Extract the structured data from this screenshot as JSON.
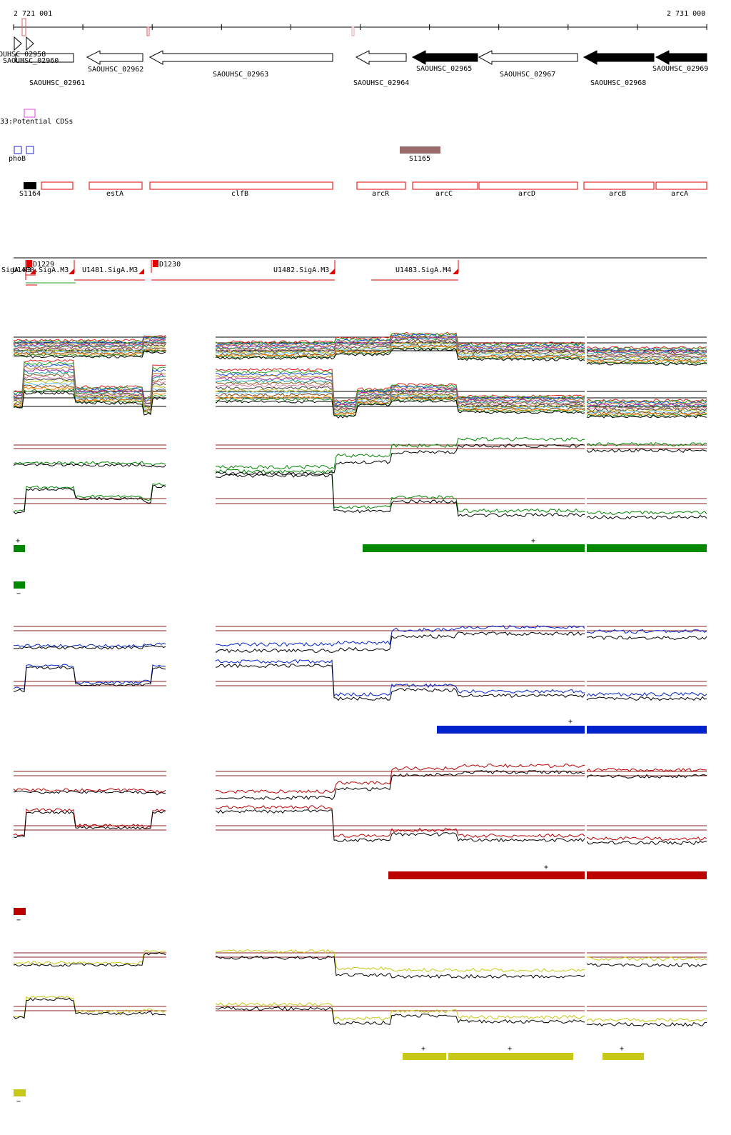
{
  "ruler": {
    "start_label": "2 721 001",
    "end_label": "2 731 000"
  },
  "genes": [
    {
      "id": "SAOUHSC_02958",
      "label": "OUHSC_02958",
      "fill": "#ffffff",
      "strand": "+"
    },
    {
      "id": "SAOUHSC_02960",
      "label": "SAOUHSC_02960",
      "fill": "#ffffff",
      "strand": "+"
    },
    {
      "id": "SAOUHSC_02961",
      "label": "SAOUHSC_02961",
      "fill": "#ffffff",
      "strand": "-"
    },
    {
      "id": "SAOUHSC_02962",
      "label": "SAOUHSC_02962",
      "fill": "#ffffff",
      "strand": "-"
    },
    {
      "id": "SAOUHSC_02963",
      "label": "SAOUHSC_02963",
      "fill": "#ffffff",
      "strand": "-"
    },
    {
      "id": "SAOUHSC_02964",
      "label": "SAOUHSC_02964",
      "fill": "#ffffff",
      "strand": "-"
    },
    {
      "id": "SAOUHSC_02965",
      "label": "SAOUHSC_02965",
      "fill": "#000000",
      "strand": "-"
    },
    {
      "id": "SAOUHSC_02967",
      "label": "SAOUHSC_02967",
      "fill": "#ffffff",
      "strand": "-"
    },
    {
      "id": "SAOUHSC_02968",
      "label": "SAOUHSC_02968",
      "fill": "#000000",
      "strand": "-"
    },
    {
      "id": "SAOUHSC_02969",
      "label": "SAOUHSC_02969",
      "fill": "#000000",
      "strand": "-"
    }
  ],
  "potential_cds": {
    "label": "33:Potential CDSs",
    "color": "#e040e0"
  },
  "regulators": {
    "site_label": "phoB",
    "site_color": "#2020d0",
    "rna_label": "S1165",
    "rna_color": "#9a6b6b"
  },
  "features": [
    {
      "label": "S1164",
      "color": "#000000"
    },
    {
      "label": "",
      "color": "#e00000"
    },
    {
      "label": "estA",
      "color": "#e00000"
    },
    {
      "label": "clfB",
      "color": "#e00000"
    },
    {
      "label": "arcR",
      "color": "#e00000"
    },
    {
      "label": "arcC",
      "color": "#e00000"
    },
    {
      "label": "arcD",
      "color": "#e00000"
    },
    {
      "label": "arcB",
      "color": "#e00000"
    },
    {
      "label": "arcA",
      "color": "#e00000"
    }
  ],
  "promoters": [
    {
      "label": "SigA.M3"
    },
    {
      "label": "U1480.SigA.M3"
    },
    {
      "label": "U1481.SigA.M3"
    },
    {
      "label": "U1482.SigA.M3"
    },
    {
      "label": "U1483.SigA.M4"
    },
    {
      "label": "D1229"
    },
    {
      "label": "D1230"
    }
  ],
  "conditions": [
    {
      "color": "#008800",
      "plus_sign": "+",
      "minus_sign": "−",
      "plus_label": "+",
      "minus_label": "−"
    },
    {
      "color": "#0022cc",
      "plus_sign": "+",
      "plus_label": "+"
    },
    {
      "color": "#bb0000",
      "plus_sign": "+",
      "minus_sign": "−",
      "plus_label": "+",
      "minus_label": "−"
    },
    {
      "color": "#c8c818",
      "plus_labels": [
        "+",
        "+",
        "+"
      ],
      "minus_sign": "−"
    }
  ]
}
